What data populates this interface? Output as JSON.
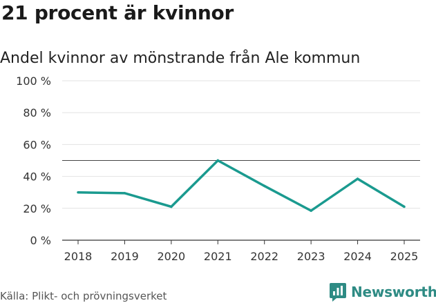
{
  "header": {
    "title": "21 procent är kvinnor",
    "subtitle": "Andel kvinnor av mönstrande från Ale kommun"
  },
  "footer": {
    "source": "Källa: Plikt- och prövningsverket",
    "brand": "Newsworthy",
    "brand_icon": "bar-chart-speech-icon",
    "brand_color": "#2e8b84"
  },
  "chart_data": {
    "type": "line",
    "x": [
      "2018",
      "2019",
      "2020",
      "2021",
      "2022",
      "2023",
      "2024",
      "2025"
    ],
    "series": [
      {
        "values": [
          30,
          29.5,
          21,
          50,
          34,
          18.5,
          38.5,
          21
        ],
        "color": "#1a9a8f"
      }
    ],
    "yticks": [
      0,
      20,
      40,
      60,
      80,
      100
    ],
    "ytick_labels": [
      "0 %",
      "20 %",
      "40 %",
      "60 %",
      "80 %",
      "100 %"
    ],
    "ylim": [
      0,
      100
    ],
    "reference_line": 50,
    "grid": true,
    "legend": "none"
  }
}
